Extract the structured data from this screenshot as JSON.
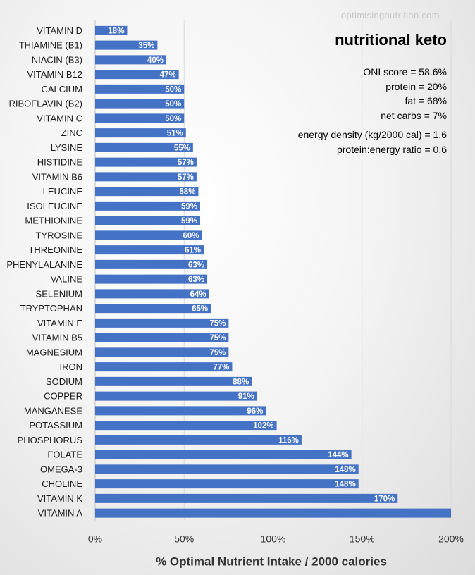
{
  "watermark": "optimisingnutrition.com",
  "chart_data": {
    "type": "bar",
    "orientation": "horizontal",
    "title": "nutritional keto",
    "xlabel": "% Optimal Nutrient Intake / 2000 calories",
    "ylabel": "",
    "xlim": [
      0,
      200
    ],
    "xticks": [
      0,
      50,
      100,
      150,
      200
    ],
    "xtick_labels": [
      "0%",
      "50%",
      "100%",
      "150%",
      "200%"
    ],
    "grid": "vertical",
    "bar_color": "#4472c4",
    "categories": [
      "VITAMIN D",
      "THIAMINE (B1)",
      "NIACIN (B3)",
      "VITAMIN B12",
      "CALCIUM",
      "RIBOFLAVIN (B2)",
      "VITAMIN C",
      "ZINC",
      "LYSINE",
      "HISTIDINE",
      "VITAMIN B6",
      "LEUCINE",
      "ISOLEUCINE",
      "METHIONINE",
      "TYROSINE",
      "THREONINE",
      "PHENYLALANINE",
      "VALINE",
      "SELENIUM",
      "TRYPTOPHAN",
      "VITAMIN E",
      "VITAMIN B5",
      "MAGNESIUM",
      "IRON",
      "SODIUM",
      "COPPER",
      "MANGANESE",
      "POTASSIUM",
      "PHOSPHORUS",
      "FOLATE",
      "OMEGA-3",
      "CHOLINE",
      "VITAMIN K",
      "VITAMIN A"
    ],
    "values": [
      18,
      35,
      40,
      47,
      50,
      50,
      50,
      51,
      55,
      57,
      57,
      58,
      59,
      59,
      60,
      61,
      63,
      63,
      64,
      65,
      75,
      75,
      75,
      77,
      88,
      91,
      96,
      102,
      116,
      144,
      148,
      148,
      170,
      200
    ],
    "data_labels": [
      "18%",
      "35%",
      "40%",
      "47%",
      "50%",
      "50%",
      "50%",
      "51%",
      "55%",
      "57%",
      "57%",
      "58%",
      "59%",
      "59%",
      "60%",
      "61%",
      "63%",
      "63%",
      "64%",
      "65%",
      "75%",
      "75%",
      "75%",
      "77%",
      "88%",
      "91%",
      "96%",
      "102%",
      "116%",
      "144%",
      "148%",
      "148%",
      "170%",
      ""
    ]
  },
  "stats": {
    "oni_score": "ONI score = 58.6%",
    "protein": "protein = 20%",
    "fat": "fat = 68%",
    "net_carbs": "net carbs = 7%",
    "energy_density": "energy density (kg/2000 cal) = 1.6",
    "protein_energy_ratio": "protein:energy ratio = 0.6"
  }
}
